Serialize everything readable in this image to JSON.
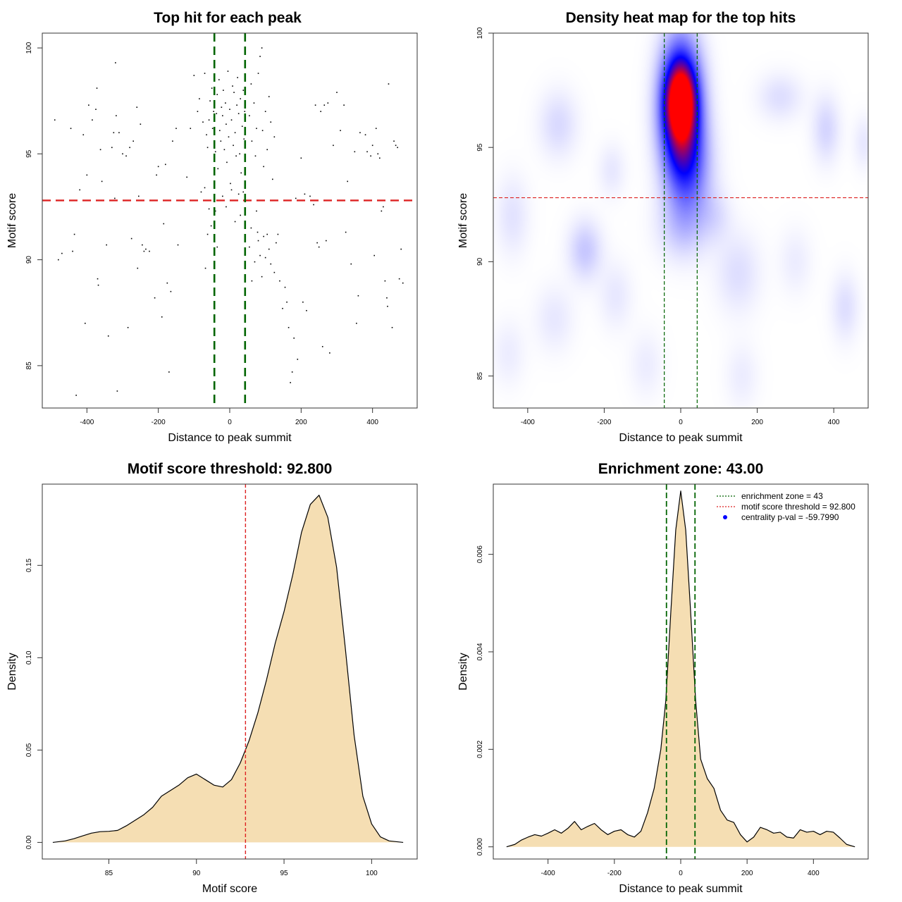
{
  "colors": {
    "threshold_line": "#dd2222",
    "zone_line": "#006400",
    "density_fill": "#f5deb3",
    "heat_low": "#ffffff",
    "heat_mid": "#0000ff",
    "heat_high": "#ff0000",
    "point": "#000000"
  },
  "chart_data": [
    {
      "id": "scatter",
      "type": "scatter",
      "title": "Top hit for each peak",
      "xlabel": "Distance to peak summit",
      "ylabel": "Motif score",
      "xlim": [
        -525,
        525
      ],
      "ylim": [
        83.0,
        100.7
      ],
      "xticks": [
        -400,
        -200,
        0,
        200,
        400
      ],
      "yticks": [
        85,
        90,
        95,
        100
      ],
      "xtick_labels": [
        "-400",
        "-200",
        "0",
        "200",
        "400"
      ],
      "ytick_labels": [
        "85",
        "90",
        "95",
        "100"
      ],
      "threshold": 92.8,
      "zone": [
        -43,
        43
      ],
      "points": [
        [
          -490,
          96.6
        ],
        [
          -480,
          90.0
        ],
        [
          -470,
          90.3
        ],
        [
          -445,
          96.2
        ],
        [
          -440,
          90.4
        ],
        [
          -435,
          91.2
        ],
        [
          -430,
          83.6
        ],
        [
          -420,
          93.3
        ],
        [
          -410,
          95.9
        ],
        [
          -405,
          87.0
        ],
        [
          -400,
          94.0
        ],
        [
          -395,
          97.3
        ],
        [
          -385,
          96.6
        ],
        [
          -375,
          97.1
        ],
        [
          -372,
          98.1
        ],
        [
          -370,
          89.1
        ],
        [
          -368,
          88.8
        ],
        [
          -362,
          95.2
        ],
        [
          -358,
          93.7
        ],
        [
          -345,
          90.7
        ],
        [
          -340,
          86.4
        ],
        [
          -330,
          95.3
        ],
        [
          -325,
          96.0
        ],
        [
          -322,
          92.9
        ],
        [
          -320,
          99.3
        ],
        [
          -318,
          96.8
        ],
        [
          -315,
          83.8
        ],
        [
          -310,
          96.0
        ],
        [
          -300,
          95.0
        ],
        [
          -290,
          94.9
        ],
        [
          -285,
          86.8
        ],
        [
          -280,
          95.3
        ],
        [
          -275,
          91.0
        ],
        [
          -270,
          95.6
        ],
        [
          -260,
          97.2
        ],
        [
          -258,
          89.6
        ],
        [
          -255,
          93.0
        ],
        [
          -250,
          96.4
        ],
        [
          -245,
          90.7
        ],
        [
          -240,
          90.4
        ],
        [
          -235,
          90.5
        ],
        [
          -225,
          90.4
        ],
        [
          -210,
          88.2
        ],
        [
          -205,
          94.0
        ],
        [
          -200,
          94.4
        ],
        [
          -190,
          87.3
        ],
        [
          -185,
          91.7
        ],
        [
          -180,
          94.5
        ],
        [
          -175,
          88.9
        ],
        [
          -170,
          84.7
        ],
        [
          -165,
          88.5
        ],
        [
          -160,
          95.6
        ],
        [
          -150,
          96.2
        ],
        [
          -145,
          90.7
        ],
        [
          -120,
          93.9
        ],
        [
          -110,
          96.2
        ],
        [
          -100,
          98.7
        ],
        [
          -90,
          97.0
        ],
        [
          -85,
          97.6
        ],
        [
          -80,
          93.2
        ],
        [
          -75,
          96.5
        ],
        [
          -70,
          98.8
        ],
        [
          -65,
          95.9
        ],
        [
          -62,
          95.3
        ],
        [
          -58,
          96.6
        ],
        [
          -55,
          97.5
        ],
        [
          -50,
          98.1
        ],
        [
          -48,
          96.2
        ],
        [
          -45,
          97.0
        ],
        [
          -40,
          95.1
        ],
        [
          -37,
          96.9
        ],
        [
          -35,
          97.8
        ],
        [
          -33,
          94.3
        ],
        [
          -30,
          98.5
        ],
        [
          -28,
          96.1
        ],
        [
          -25,
          95.6
        ],
        [
          -23,
          97.2
        ],
        [
          -20,
          96.8
        ],
        [
          -18,
          98.0
        ],
        [
          -15,
          95.2
        ],
        [
          -12,
          97.4
        ],
        [
          -10,
          96.4
        ],
        [
          -8,
          94.6
        ],
        [
          -5,
          98.9
        ],
        [
          -3,
          95.8
        ],
        [
          0,
          97.1
        ],
        [
          2,
          93.6
        ],
        [
          5,
          96.6
        ],
        [
          8,
          98.2
        ],
        [
          10,
          95.4
        ],
        [
          12,
          97.9
        ],
        [
          15,
          96.0
        ],
        [
          18,
          94.9
        ],
        [
          20,
          97.3
        ],
        [
          22,
          98.6
        ],
        [
          25,
          96.9
        ],
        [
          28,
          95.0
        ],
        [
          30,
          97.6
        ],
        [
          32,
          94.1
        ],
        [
          35,
          96.3
        ],
        [
          38,
          98.0
        ],
        [
          40,
          95.7
        ],
        [
          42,
          97.0
        ],
        [
          -52,
          91.6
        ],
        [
          -58,
          92.4
        ],
        [
          -62,
          91.2
        ],
        [
          -70,
          93.4
        ],
        [
          -68,
          89.6
        ],
        [
          -40,
          92.3
        ],
        [
          -35,
          90.6
        ],
        [
          -20,
          93.0
        ],
        [
          -10,
          92.5
        ],
        [
          5,
          93.3
        ],
        [
          15,
          91.8
        ],
        [
          25,
          93.1
        ],
        [
          30,
          92.1
        ],
        [
          38,
          93.2
        ],
        [
          55,
          96.8
        ],
        [
          60,
          98.3
        ],
        [
          62,
          95.6
        ],
        [
          68,
          97.4
        ],
        [
          72,
          94.9
        ],
        [
          75,
          96.2
        ],
        [
          80,
          98.8
        ],
        [
          85,
          99.6
        ],
        [
          90,
          100.0
        ],
        [
          92,
          96.1
        ],
        [
          95,
          94.4
        ],
        [
          100,
          97.0
        ],
        [
          105,
          95.2
        ],
        [
          110,
          97.7
        ],
        [
          115,
          96.5
        ],
        [
          120,
          93.8
        ],
        [
          125,
          95.8
        ],
        [
          55,
          90.6
        ],
        [
          60,
          91.5
        ],
        [
          62,
          89.0
        ],
        [
          70,
          89.9
        ],
        [
          75,
          92.3
        ],
        [
          78,
          91.3
        ],
        [
          80,
          90.9
        ],
        [
          85,
          90.2
        ],
        [
          90,
          89.2
        ],
        [
          95,
          91.1
        ],
        [
          100,
          90.1
        ],
        [
          105,
          91.2
        ],
        [
          110,
          90.5
        ],
        [
          115,
          89.8
        ],
        [
          125,
          89.4
        ],
        [
          130,
          90.8
        ],
        [
          135,
          91.2
        ],
        [
          140,
          89.0
        ],
        [
          148,
          87.7
        ],
        [
          155,
          88.7
        ],
        [
          160,
          88.0
        ],
        [
          165,
          86.8
        ],
        [
          170,
          84.2
        ],
        [
          175,
          84.7
        ],
        [
          180,
          86.3
        ],
        [
          185,
          92.9
        ],
        [
          190,
          85.3
        ],
        [
          195,
          92.8
        ],
        [
          200,
          94.8
        ],
        [
          205,
          88.0
        ],
        [
          210,
          93.1
        ],
        [
          215,
          87.6
        ],
        [
          225,
          93.0
        ],
        [
          235,
          92.6
        ],
        [
          240,
          97.3
        ],
        [
          245,
          90.8
        ],
        [
          250,
          90.6
        ],
        [
          255,
          97.0
        ],
        [
          260,
          85.9
        ],
        [
          265,
          97.3
        ],
        [
          270,
          90.9
        ],
        [
          275,
          97.4
        ],
        [
          280,
          85.6
        ],
        [
          290,
          95.4
        ],
        [
          300,
          97.9
        ],
        [
          310,
          96.1
        ],
        [
          320,
          97.3
        ],
        [
          325,
          91.3
        ],
        [
          330,
          93.7
        ],
        [
          340,
          89.8
        ],
        [
          350,
          95.1
        ],
        [
          355,
          87.0
        ],
        [
          360,
          88.3
        ],
        [
          365,
          96.0
        ],
        [
          380,
          95.9
        ],
        [
          385,
          95.1
        ],
        [
          395,
          94.9
        ],
        [
          400,
          95.4
        ],
        [
          405,
          90.2
        ],
        [
          410,
          96.2
        ],
        [
          415,
          95.0
        ],
        [
          420,
          94.8
        ],
        [
          425,
          92.3
        ],
        [
          430,
          92.5
        ],
        [
          435,
          89.0
        ],
        [
          440,
          88.2
        ],
        [
          442,
          87.8
        ],
        [
          445,
          98.3
        ],
        [
          455,
          86.8
        ],
        [
          460,
          95.6
        ],
        [
          465,
          95.4
        ],
        [
          470,
          95.3
        ],
        [
          475,
          89.1
        ],
        [
          480,
          90.5
        ],
        [
          485,
          88.9
        ]
      ]
    },
    {
      "id": "heatmap",
      "type": "heatmap",
      "title": "Density heat map for the top hits",
      "xlabel": "Distance to peak summit",
      "ylabel": "Motif score",
      "xlim": [
        -490,
        490
      ],
      "ylim": [
        83.6,
        100.0
      ],
      "xticks": [
        -400,
        -200,
        0,
        200,
        400
      ],
      "yticks": [
        85,
        90,
        95,
        100
      ],
      "xtick_labels": [
        "-400",
        "-200",
        "0",
        "200",
        "400"
      ],
      "ytick_labels": [
        "85",
        "90",
        "95",
        "100"
      ],
      "threshold": 92.8,
      "zone": [
        -43,
        43
      ],
      "hotspots": [
        {
          "x": 0,
          "y": 96.8,
          "sx": 35,
          "sy": 1.8,
          "w": 1.0
        },
        {
          "x": 0,
          "y": 97.0,
          "sx": 22,
          "sy": 0.9,
          "w": 0.6
        },
        {
          "x": 20,
          "y": 94.0,
          "sx": 40,
          "sy": 1.5,
          "w": 0.3
        },
        {
          "x": 5,
          "y": 91.5,
          "sx": 45,
          "sy": 1.0,
          "w": 0.1
        },
        {
          "x": -250,
          "y": 90.5,
          "sx": 30,
          "sy": 0.9,
          "w": 0.12
        },
        {
          "x": -320,
          "y": 96.0,
          "sx": 35,
          "sy": 1.0,
          "w": 0.08
        },
        {
          "x": 380,
          "y": 95.8,
          "sx": 25,
          "sy": 1.0,
          "w": 0.09
        },
        {
          "x": 260,
          "y": 97.2,
          "sx": 40,
          "sy": 0.7,
          "w": 0.07
        },
        {
          "x": -440,
          "y": 92.0,
          "sx": 30,
          "sy": 1.2,
          "w": 0.06
        },
        {
          "x": 430,
          "y": 88.0,
          "sx": 25,
          "sy": 1.0,
          "w": 0.07
        },
        {
          "x": 150,
          "y": 89.5,
          "sx": 40,
          "sy": 1.2,
          "w": 0.07
        },
        {
          "x": -170,
          "y": 88.5,
          "sx": 30,
          "sy": 1.0,
          "w": 0.05
        },
        {
          "x": -330,
          "y": 87.5,
          "sx": 35,
          "sy": 1.0,
          "w": 0.05
        },
        {
          "x": 90,
          "y": 92.0,
          "sx": 30,
          "sy": 0.8,
          "w": 0.06
        },
        {
          "x": 480,
          "y": 95.2,
          "sx": 20,
          "sy": 0.8,
          "w": 0.05
        },
        {
          "x": -180,
          "y": 94.0,
          "sx": 25,
          "sy": 0.8,
          "w": 0.05
        },
        {
          "x": 300,
          "y": 90.0,
          "sx": 30,
          "sy": 1.0,
          "w": 0.04
        },
        {
          "x": -90,
          "y": 85.5,
          "sx": 30,
          "sy": 1.0,
          "w": 0.04
        },
        {
          "x": 160,
          "y": 85.0,
          "sx": 30,
          "sy": 1.0,
          "w": 0.04
        },
        {
          "x": -450,
          "y": 86.0,
          "sx": 30,
          "sy": 1.0,
          "w": 0.04
        }
      ]
    },
    {
      "id": "score_density",
      "type": "area",
      "title": "Motif score threshold: 92.800",
      "xlabel": "Motif score",
      "ylabel": "Density",
      "xlim": [
        81.2,
        102.6
      ],
      "ylim": [
        -0.009,
        0.194
      ],
      "xticks": [
        85,
        90,
        95,
        100
      ],
      "yticks": [
        0.0,
        0.05,
        0.1,
        0.15
      ],
      "xtick_labels": [
        "85",
        "90",
        "95",
        "100"
      ],
      "ytick_labels": [
        "0.00",
        "0.05",
        "0.10",
        "0.15"
      ],
      "threshold": 92.8,
      "x": [
        81.8,
        82.5,
        83.0,
        83.5,
        84.0,
        84.5,
        85.0,
        85.5,
        86.0,
        86.5,
        87.0,
        87.5,
        88.0,
        88.5,
        89.0,
        89.5,
        90.0,
        90.5,
        91.0,
        91.5,
        92.0,
        92.5,
        93.0,
        93.5,
        94.0,
        94.5,
        95.0,
        95.5,
        96.0,
        96.5,
        97.0,
        97.5,
        98.0,
        98.5,
        99.0,
        99.5,
        100.0,
        100.5,
        101.0,
        101.8
      ],
      "y": [
        0.0,
        0.0008,
        0.002,
        0.0035,
        0.005,
        0.0058,
        0.006,
        0.0065,
        0.009,
        0.012,
        0.015,
        0.019,
        0.025,
        0.028,
        0.031,
        0.035,
        0.037,
        0.034,
        0.031,
        0.03,
        0.034,
        0.043,
        0.055,
        0.07,
        0.088,
        0.108,
        0.125,
        0.145,
        0.168,
        0.183,
        0.188,
        0.176,
        0.149,
        0.105,
        0.058,
        0.025,
        0.01,
        0.003,
        0.0008,
        0.0
      ]
    },
    {
      "id": "distance_density",
      "type": "area",
      "title": "Enrichment zone: 43.00",
      "xlabel": "Distance to peak summit",
      "ylabel": "Density",
      "xlim": [
        -565,
        565
      ],
      "ylim": [
        -0.00025,
        0.00744
      ],
      "xticks": [
        -400,
        -200,
        0,
        200,
        400
      ],
      "yticks": [
        0.0,
        0.002,
        0.004,
        0.006
      ],
      "xtick_labels": [
        "-400",
        "-200",
        "0",
        "200",
        "400"
      ],
      "ytick_labels": [
        "0.000",
        "0.002",
        "0.004",
        "0.006"
      ],
      "zone": [
        -43,
        43
      ],
      "x": [
        -525,
        -500,
        -480,
        -460,
        -440,
        -420,
        -400,
        -380,
        -360,
        -340,
        -320,
        -300,
        -280,
        -260,
        -240,
        -220,
        -200,
        -180,
        -160,
        -140,
        -120,
        -100,
        -80,
        -60,
        -45,
        -30,
        -15,
        0,
        15,
        30,
        45,
        60,
        80,
        100,
        120,
        140,
        160,
        180,
        200,
        220,
        240,
        260,
        280,
        300,
        320,
        340,
        360,
        380,
        400,
        420,
        440,
        460,
        480,
        500,
        525
      ],
      "y": [
        0.0,
        5e-05,
        0.00014,
        0.0002,
        0.00025,
        0.00022,
        0.00028,
        0.00035,
        0.00028,
        0.00038,
        0.00052,
        0.00035,
        0.00042,
        0.00048,
        0.00035,
        0.00025,
        0.00032,
        0.00035,
        0.00025,
        0.0002,
        0.00032,
        0.0007,
        0.0012,
        0.002,
        0.003,
        0.0048,
        0.0065,
        0.0073,
        0.0065,
        0.0048,
        0.003,
        0.0018,
        0.0014,
        0.0012,
        0.00075,
        0.00055,
        0.0005,
        0.00025,
        0.0001,
        0.0002,
        0.0004,
        0.00035,
        0.00028,
        0.0003,
        0.0002,
        0.00018,
        0.00035,
        0.0003,
        0.00032,
        0.00025,
        0.00032,
        0.0003,
        0.00018,
        5e-05,
        0.0
      ],
      "legend": {
        "position": "top-right",
        "entries": [
          {
            "label": "enrichment zone = 43",
            "style": "dotted-line",
            "color": "#006400"
          },
          {
            "label": "motif score threshold = 92.800",
            "style": "dotted-line",
            "color": "#dd2222"
          },
          {
            "label": "centrality p-val = -59.7990",
            "style": "point",
            "color": "#0000ff"
          }
        ]
      }
    }
  ]
}
